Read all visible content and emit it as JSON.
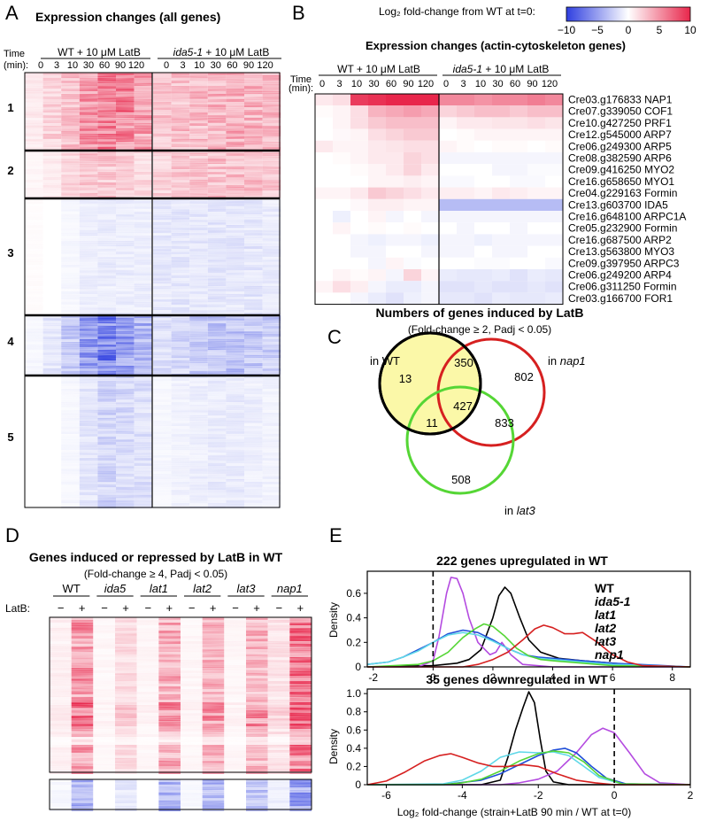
{
  "colors": {
    "red": "#e8264b",
    "blue": "#2f3fe0",
    "WT": "#000000",
    "ida5-1": "#b44be0",
    "lat1": "#1f4fd8",
    "lat2": "#5fd8e8",
    "lat3": "#55d635",
    "nap1": "#d62020",
    "venn_fill": "#fbf8a8"
  },
  "panelA": {
    "letter": "A",
    "title": "Expression changes (all genes)",
    "time_label": "Time",
    "time_unit": "(min):",
    "group1": "WT + 10 μM LatB",
    "group2_strain": "ida5-1",
    "group2_rest": " + 10 μM LatB",
    "times": [
      "0",
      "3",
      "10",
      "30",
      "60",
      "90",
      "120"
    ],
    "clusters": [
      "1",
      "2",
      "3",
      "4",
      "5"
    ]
  },
  "panelB": {
    "letter": "B",
    "colorbar_title": "Log₂ fold-change from WT at t=0:",
    "colorbar_ticks": [
      "−10",
      "−5",
      "0",
      "5",
      "10"
    ],
    "title": "Expression changes (actin-cytoskeleton genes)",
    "time_label": "Time",
    "time_unit": "(min):",
    "group1": "WT + 10 μM LatB",
    "group2_strain": "ida5-1",
    "group2_rest": " + 10 μM LatB",
    "times": [
      "0",
      "3",
      "10",
      "30",
      "60",
      "90",
      "120"
    ],
    "genes": [
      "Cre03.g176833 NAP1",
      "Cre07.g339050 COF1",
      "Cre10.g427250 PRF1",
      "Cre12.g545000 ARP7",
      "Cre06.g249300 ARP5",
      "Cre08.g382590 ARP6",
      "Cre09.g416250 MYO2",
      "Cre16.g658650 MYO1",
      "Cre04.g229163 Formin",
      "Cre13.g603700 IDA5",
      "Cre16.g648100 ARPC1A",
      "Cre05.g232900 Formin",
      "Cre16.g687500 ARP2",
      "Cre13.g563800 MYO3",
      "Cre09.g397950 ARPC3",
      "Cre06.g249200 ARP4",
      "Cre06.g311250 Formin",
      "Cre03.g166700 FOR1"
    ]
  },
  "panelC": {
    "letter": "C",
    "title": "Numbers of genes induced by LatB",
    "subtitle": "(Fold-change ≥ 2, Padj < 0.05)",
    "label_wt": "in WT",
    "label_nap1_pre": "in ",
    "label_nap1": "nap1",
    "label_lat3_pre": "in ",
    "label_lat3": "lat3",
    "counts": {
      "wt_only": "13",
      "wt_nap1": "350",
      "nap1_only": "802",
      "all": "427",
      "wt_lat3": "11",
      "nap1_lat3": "833",
      "lat3_only": "508"
    }
  },
  "panelD": {
    "letter": "D",
    "title": "Genes induced or repressed by LatB in WT",
    "subtitle": "(Fold-change ≥ 4, Padj < 0.05)",
    "latb_label": "LatB:",
    "strains": [
      "WT",
      "ida5",
      "lat1",
      "lat2",
      "lat3",
      "nap1"
    ],
    "minus": "−",
    "plus": "+"
  },
  "panelE": {
    "letter": "E",
    "top_title": "222 genes upregulated in WT",
    "bottom_title": "35 genes downregulated in WT",
    "ylabel": "Density",
    "xlabel": "Log₂ fold-change (strain+LatB 90 min / WT at t=0)",
    "legend": [
      "WT",
      "ida5-1",
      "lat1",
      "lat2",
      "lat3",
      "nap1"
    ]
  },
  "chart_data": [
    {
      "type": "line",
      "title": "222 genes upregulated in WT",
      "xlabel": "Log₂ fold-change (strain+LatB 90 min / WT at t=0)",
      "ylabel": "Density",
      "xlim": [
        -2.2,
        8.6
      ],
      "ylim": [
        0,
        0.78
      ],
      "xticks": [
        "-2",
        "0",
        "2",
        "4",
        "6",
        "8"
      ],
      "yticks": [
        "0",
        "0.2",
        "0.4",
        "0.6"
      ],
      "vline_x": 0,
      "series": [
        {
          "name": "WT",
          "x": [
            -2.2,
            0,
            0.8,
            1.2,
            1.6,
            2.0,
            2.2,
            2.4,
            2.6,
            2.9,
            3.2,
            3.6,
            4.2,
            5,
            6,
            7,
            8.6
          ],
          "y": [
            0,
            0.01,
            0.03,
            0.06,
            0.14,
            0.4,
            0.58,
            0.65,
            0.6,
            0.4,
            0.22,
            0.12,
            0.07,
            0.05,
            0.03,
            0.01,
            0
          ]
        },
        {
          "name": "ida5-1",
          "x": [
            -2.2,
            -0.5,
            0,
            0.2,
            0.45,
            0.6,
            0.8,
            1.0,
            1.2,
            1.5,
            1.9,
            2.1,
            2.3,
            2.6,
            3,
            4,
            8.6
          ],
          "y": [
            0,
            0,
            0.05,
            0.25,
            0.6,
            0.73,
            0.72,
            0.6,
            0.4,
            0.2,
            0.1,
            0.12,
            0.2,
            0.1,
            0.02,
            0,
            0
          ]
        },
        {
          "name": "lat1",
          "x": [
            -2.2,
            -1.5,
            -1,
            -0.5,
            0,
            0.5,
            1.0,
            1.5,
            2.0,
            2.5,
            3,
            3.5,
            4,
            5,
            6,
            8.6
          ],
          "y": [
            0.02,
            0.04,
            0.08,
            0.14,
            0.2,
            0.27,
            0.3,
            0.28,
            0.22,
            0.15,
            0.1,
            0.08,
            0.07,
            0.05,
            0.03,
            0
          ]
        },
        {
          "name": "lat2",
          "x": [
            -2.2,
            -1.5,
            -1,
            -0.5,
            0,
            0.5,
            1.0,
            1.5,
            2.0,
            2.5,
            3,
            3.5,
            4,
            5,
            6,
            8.6
          ],
          "y": [
            0.02,
            0.04,
            0.08,
            0.13,
            0.2,
            0.26,
            0.28,
            0.26,
            0.21,
            0.15,
            0.1,
            0.07,
            0.06,
            0.04,
            0.02,
            0
          ]
        },
        {
          "name": "lat3",
          "x": [
            -2.2,
            -0.5,
            0,
            0.5,
            1.0,
            1.4,
            1.7,
            2.0,
            2.4,
            2.8,
            3.2,
            3.6,
            4,
            5,
            6,
            8.6
          ],
          "y": [
            0,
            0.02,
            0.05,
            0.12,
            0.24,
            0.31,
            0.35,
            0.33,
            0.25,
            0.15,
            0.09,
            0.06,
            0.05,
            0.03,
            0.01,
            0
          ]
        },
        {
          "name": "nap1",
          "x": [
            -2.2,
            1,
            1.5,
            2,
            2.5,
            3,
            3.4,
            3.7,
            4.0,
            4.4,
            4.7,
            5.0,
            5.5,
            6,
            6.5,
            7,
            8.6
          ],
          "y": [
            0,
            0,
            0.02,
            0.06,
            0.12,
            0.22,
            0.31,
            0.34,
            0.32,
            0.27,
            0.27,
            0.28,
            0.2,
            0.1,
            0.04,
            0.01,
            0
          ]
        }
      ]
    },
    {
      "type": "line",
      "title": "35 genes downregulated in WT",
      "xlabel": "Log₂ fold-change (strain+LatB 90 min / WT at t=0)",
      "ylabel": "Density",
      "xlim": [
        -6.5,
        2
      ],
      "ylim": [
        0,
        1.05
      ],
      "xticks": [
        "-6",
        "-4",
        "-2",
        "0",
        "2"
      ],
      "yticks": [
        "0",
        "0.2",
        "0.4",
        "0.6",
        "0.8",
        "1.0"
      ],
      "vline_x": 0,
      "series": [
        {
          "name": "WT",
          "x": [
            -6.5,
            -3.5,
            -3.0,
            -2.8,
            -2.6,
            -2.4,
            -2.25,
            -2.1,
            -1.95,
            -1.8,
            -1.6,
            -1.2,
            2
          ],
          "y": [
            0,
            0,
            0.05,
            0.3,
            0.6,
            0.85,
            1.02,
            0.9,
            0.5,
            0.15,
            0.03,
            0,
            0
          ]
        },
        {
          "name": "ida5-1",
          "x": [
            -6.5,
            -3,
            -2.5,
            -2,
            -1.5,
            -1,
            -0.6,
            -0.3,
            0,
            0.4,
            0.8,
            1.2,
            2
          ],
          "y": [
            0,
            0,
            0.02,
            0.06,
            0.15,
            0.35,
            0.55,
            0.62,
            0.57,
            0.35,
            0.12,
            0.02,
            0
          ]
        },
        {
          "name": "lat1",
          "x": [
            -6.5,
            -4.5,
            -3.5,
            -3,
            -2.5,
            -2,
            -1.6,
            -1.3,
            -1,
            -0.6,
            -0.2,
            0.3,
            2
          ],
          "y": [
            0,
            0,
            0.05,
            0.12,
            0.22,
            0.32,
            0.38,
            0.4,
            0.35,
            0.2,
            0.07,
            0.01,
            0
          ]
        },
        {
          "name": "lat2",
          "x": [
            -6.5,
            -4.5,
            -4,
            -3.5,
            -3,
            -2.5,
            -2,
            -1.6,
            -1.2,
            -0.8,
            -0.4,
            0.2,
            2
          ],
          "y": [
            0,
            0.01,
            0.05,
            0.15,
            0.3,
            0.36,
            0.35,
            0.36,
            0.32,
            0.2,
            0.08,
            0.01,
            0
          ]
        },
        {
          "name": "lat3",
          "x": [
            -6.5,
            -4.5,
            -4,
            -3.5,
            -3,
            -2.5,
            -2,
            -1.6,
            -1.2,
            -0.8,
            -0.4,
            0.2,
            2
          ],
          "y": [
            0,
            0,
            0.02,
            0.06,
            0.15,
            0.26,
            0.34,
            0.37,
            0.35,
            0.25,
            0.1,
            0.01,
            0
          ]
        },
        {
          "name": "nap1",
          "x": [
            -6.5,
            -6,
            -5.5,
            -5,
            -4.6,
            -4.3,
            -4,
            -3.6,
            -3.2,
            -2.8,
            -2.4,
            -2,
            -1.5,
            -1,
            -0.5,
            0,
            2
          ],
          "y": [
            0,
            0.04,
            0.14,
            0.26,
            0.32,
            0.34,
            0.3,
            0.24,
            0.2,
            0.2,
            0.22,
            0.2,
            0.12,
            0.05,
            0.02,
            0,
            0
          ]
        }
      ]
    }
  ]
}
